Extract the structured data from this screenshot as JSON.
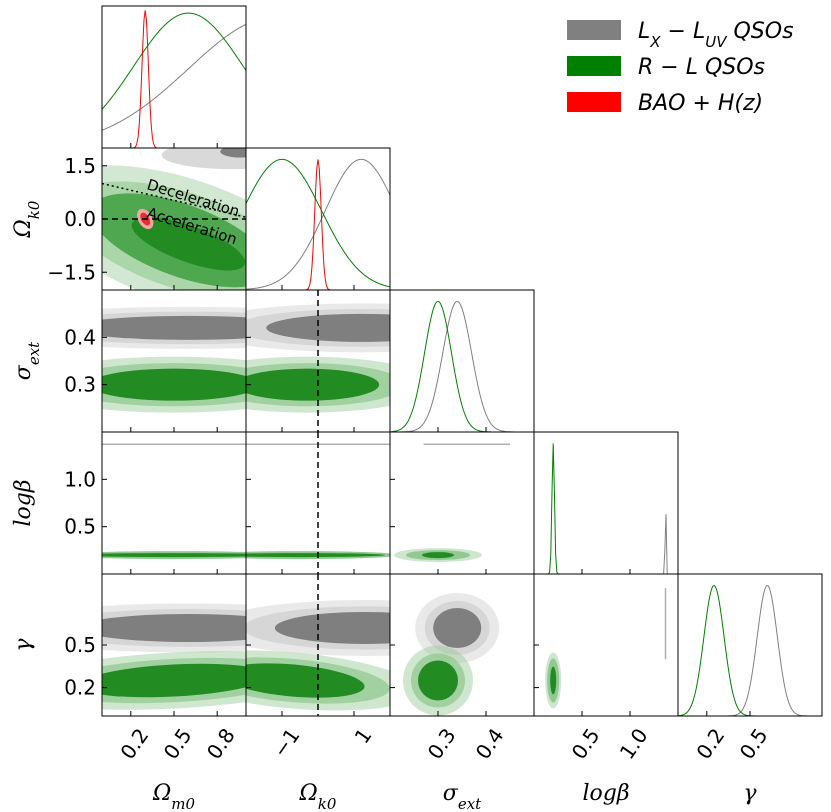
{
  "chart_data": {
    "type": "triangle-corner-plot",
    "parameters": [
      {
        "name": "Omega_m0",
        "label": "Ω_m0",
        "range": [
          0.0,
          1.0
        ],
        "ticks": [
          "0.2",
          "0.5",
          "0.8"
        ],
        "tick_values": [
          0.2,
          0.5,
          0.8
        ]
      },
      {
        "name": "Omega_k0",
        "label": "Ω_k0",
        "range": [
          -2.0,
          2.0
        ],
        "ticks": [
          "−1",
          "1"
        ],
        "tick_values": [
          -1,
          1
        ],
        "y_ticks": [
          "1.5",
          "0.0",
          "−1.5"
        ],
        "y_tick_values": [
          1.5,
          0.0,
          -1.5
        ]
      },
      {
        "name": "sigma_ext",
        "label": "σ_ext",
        "range": [
          0.2,
          0.5
        ],
        "ticks": [
          "0.3",
          "0.4"
        ],
        "tick_values": [
          0.3,
          0.4
        ],
        "y_ticks": [
          "0.4",
          "0.3"
        ],
        "y_tick_values": [
          0.4,
          0.3
        ]
      },
      {
        "name": "log_beta",
        "label": "logβ",
        "range": [
          0.0,
          1.5
        ],
        "ticks": [
          "0.5",
          "1.0"
        ],
        "tick_values": [
          0.5,
          1.0
        ],
        "y_ticks": [
          "1.0",
          "0.5"
        ],
        "y_tick_values": [
          1.0,
          0.5
        ]
      },
      {
        "name": "gamma",
        "label": "γ",
        "range": [
          0.0,
          1.0
        ],
        "ticks": [
          "0.2",
          "0.5"
        ],
        "tick_values": [
          0.2,
          0.5
        ],
        "y_ticks": [
          "0.5",
          "0.2"
        ],
        "y_tick_values": [
          0.5,
          0.2
        ]
      }
    ],
    "axis_labels": {
      "Omega_m0": {
        "base": "Ω",
        "sub": "m0"
      },
      "Omega_k0": {
        "base": "Ω",
        "sub": "k0"
      },
      "sigma_ext": {
        "base": "σ",
        "sub": "ext"
      },
      "log_beta": {
        "base": "logβ",
        "sub": ""
      },
      "gamma": {
        "base": "γ",
        "sub": ""
      }
    },
    "series": [
      {
        "name": "LX-LUV QSOs",
        "color": "#808080",
        "means": {
          "Omega_m0": 0.9,
          "Omega_k0": 1.0,
          "sigma_ext": 0.34,
          "log_beta": 1.37,
          "gamma": 0.62
        }
      },
      {
        "name": "R-L QSOs",
        "color": "#008000",
        "means": {
          "Omega_m0": 0.6,
          "Omega_k0": -1.0,
          "sigma_ext": 0.3,
          "log_beta": 0.2,
          "gamma": 0.25
        }
      },
      {
        "name": "BAO+H(z)",
        "color": "#ff0000",
        "means": {
          "Omega_m0": 0.3,
          "Omega_k0": 0.0
        }
      }
    ],
    "legend": {
      "position": "top-right",
      "entries": [
        {
          "base": "L",
          "sub1": "X",
          "mid": " − L",
          "sub2": "UV",
          "tail": " QSOs",
          "color": "#808080"
        },
        {
          "base": "R − L QSOs",
          "sub1": "",
          "mid": "",
          "sub2": "",
          "tail": "",
          "color": "#008000"
        },
        {
          "base": "BAO + H(z)",
          "sub1": "",
          "mid": "",
          "sub2": "",
          "tail": "",
          "color": "#ff0000"
        }
      ]
    },
    "annotations": {
      "deceleration": "Deceleration",
      "acceleration": "Acceleration"
    },
    "reference_lines": {
      "Omega_k0": 0.0
    }
  }
}
